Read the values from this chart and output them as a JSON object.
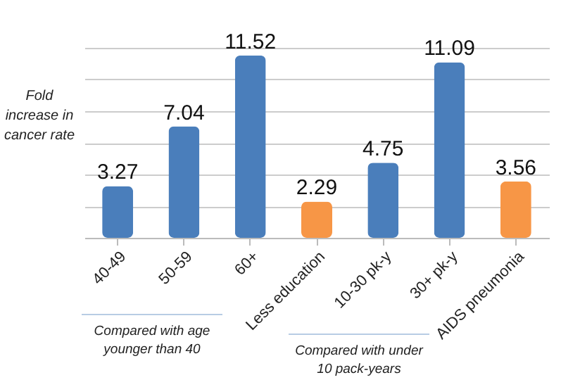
{
  "chart_data": {
    "type": "bar",
    "ylabel": "Fold increase in cancer rate",
    "categories": [
      "40-49",
      "50-59",
      "60+",
      "Less education",
      "10-30 pk-y",
      "30+ pk-y",
      "AIDS pneumonia"
    ],
    "values": [
      3.27,
      7.04,
      11.52,
      2.29,
      4.75,
      11.09,
      3.56
    ],
    "colors": [
      "#4a7ebb",
      "#4a7ebb",
      "#4a7ebb",
      "#f79646",
      "#4a7ebb",
      "#4a7ebb",
      "#f79646"
    ],
    "ylim": [
      0,
      12
    ],
    "yticks": [
      {
        "value": 0,
        "label": null
      },
      {
        "value": 2,
        "label": null
      },
      {
        "value": 4,
        "label": null
      },
      {
        "value": 6,
        "label": null
      },
      {
        "value": 8,
        "label": null
      },
      {
        "value": 10,
        "label": null
      },
      {
        "value": 12,
        "label": null
      }
    ],
    "grid": "y",
    "tick_labels": "x",
    "data_labels": true,
    "annotations": [
      "Compared with age younger than 40",
      "Compared with under 10 pack-years"
    ]
  }
}
